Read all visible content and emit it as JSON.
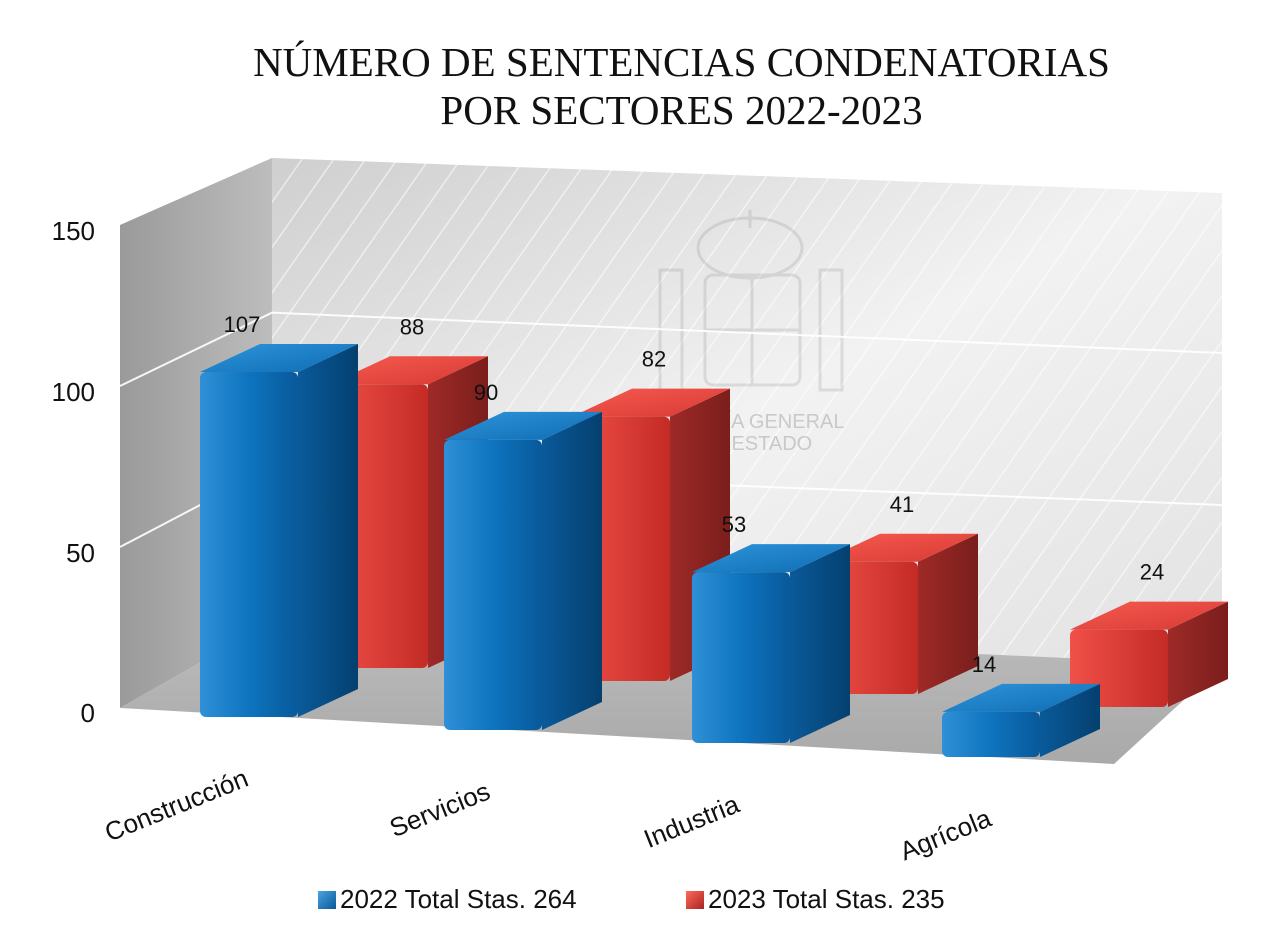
{
  "chart_data": {
    "type": "bar",
    "title": "NÚMERO DE SENTENCIAS CONDENATORIAS POR SECTORES 2022-2023",
    "title_lines": [
      "NÚMERO DE SENTENCIAS CONDENATORIAS",
      "POR SECTORES 2022-2023"
    ],
    "categories": [
      "Construcción",
      "Servicios",
      "Industria",
      "Agrícola"
    ],
    "series": [
      {
        "name": "2022 Total Stas. 264",
        "values": [
          107,
          90,
          53,
          14
        ],
        "color": "#0e6fb8"
      },
      {
        "name": "2023 Total Stas. 235",
        "values": [
          88,
          82,
          41,
          24
        ],
        "color": "#d73a33"
      }
    ],
    "ylim": [
      0,
      150
    ],
    "yticks": [
      "0",
      "50",
      "100",
      "150"
    ],
    "grid": true,
    "legend": "bottom",
    "watermark": "FISCALÍA GENERAL DEL ESTADO"
  }
}
